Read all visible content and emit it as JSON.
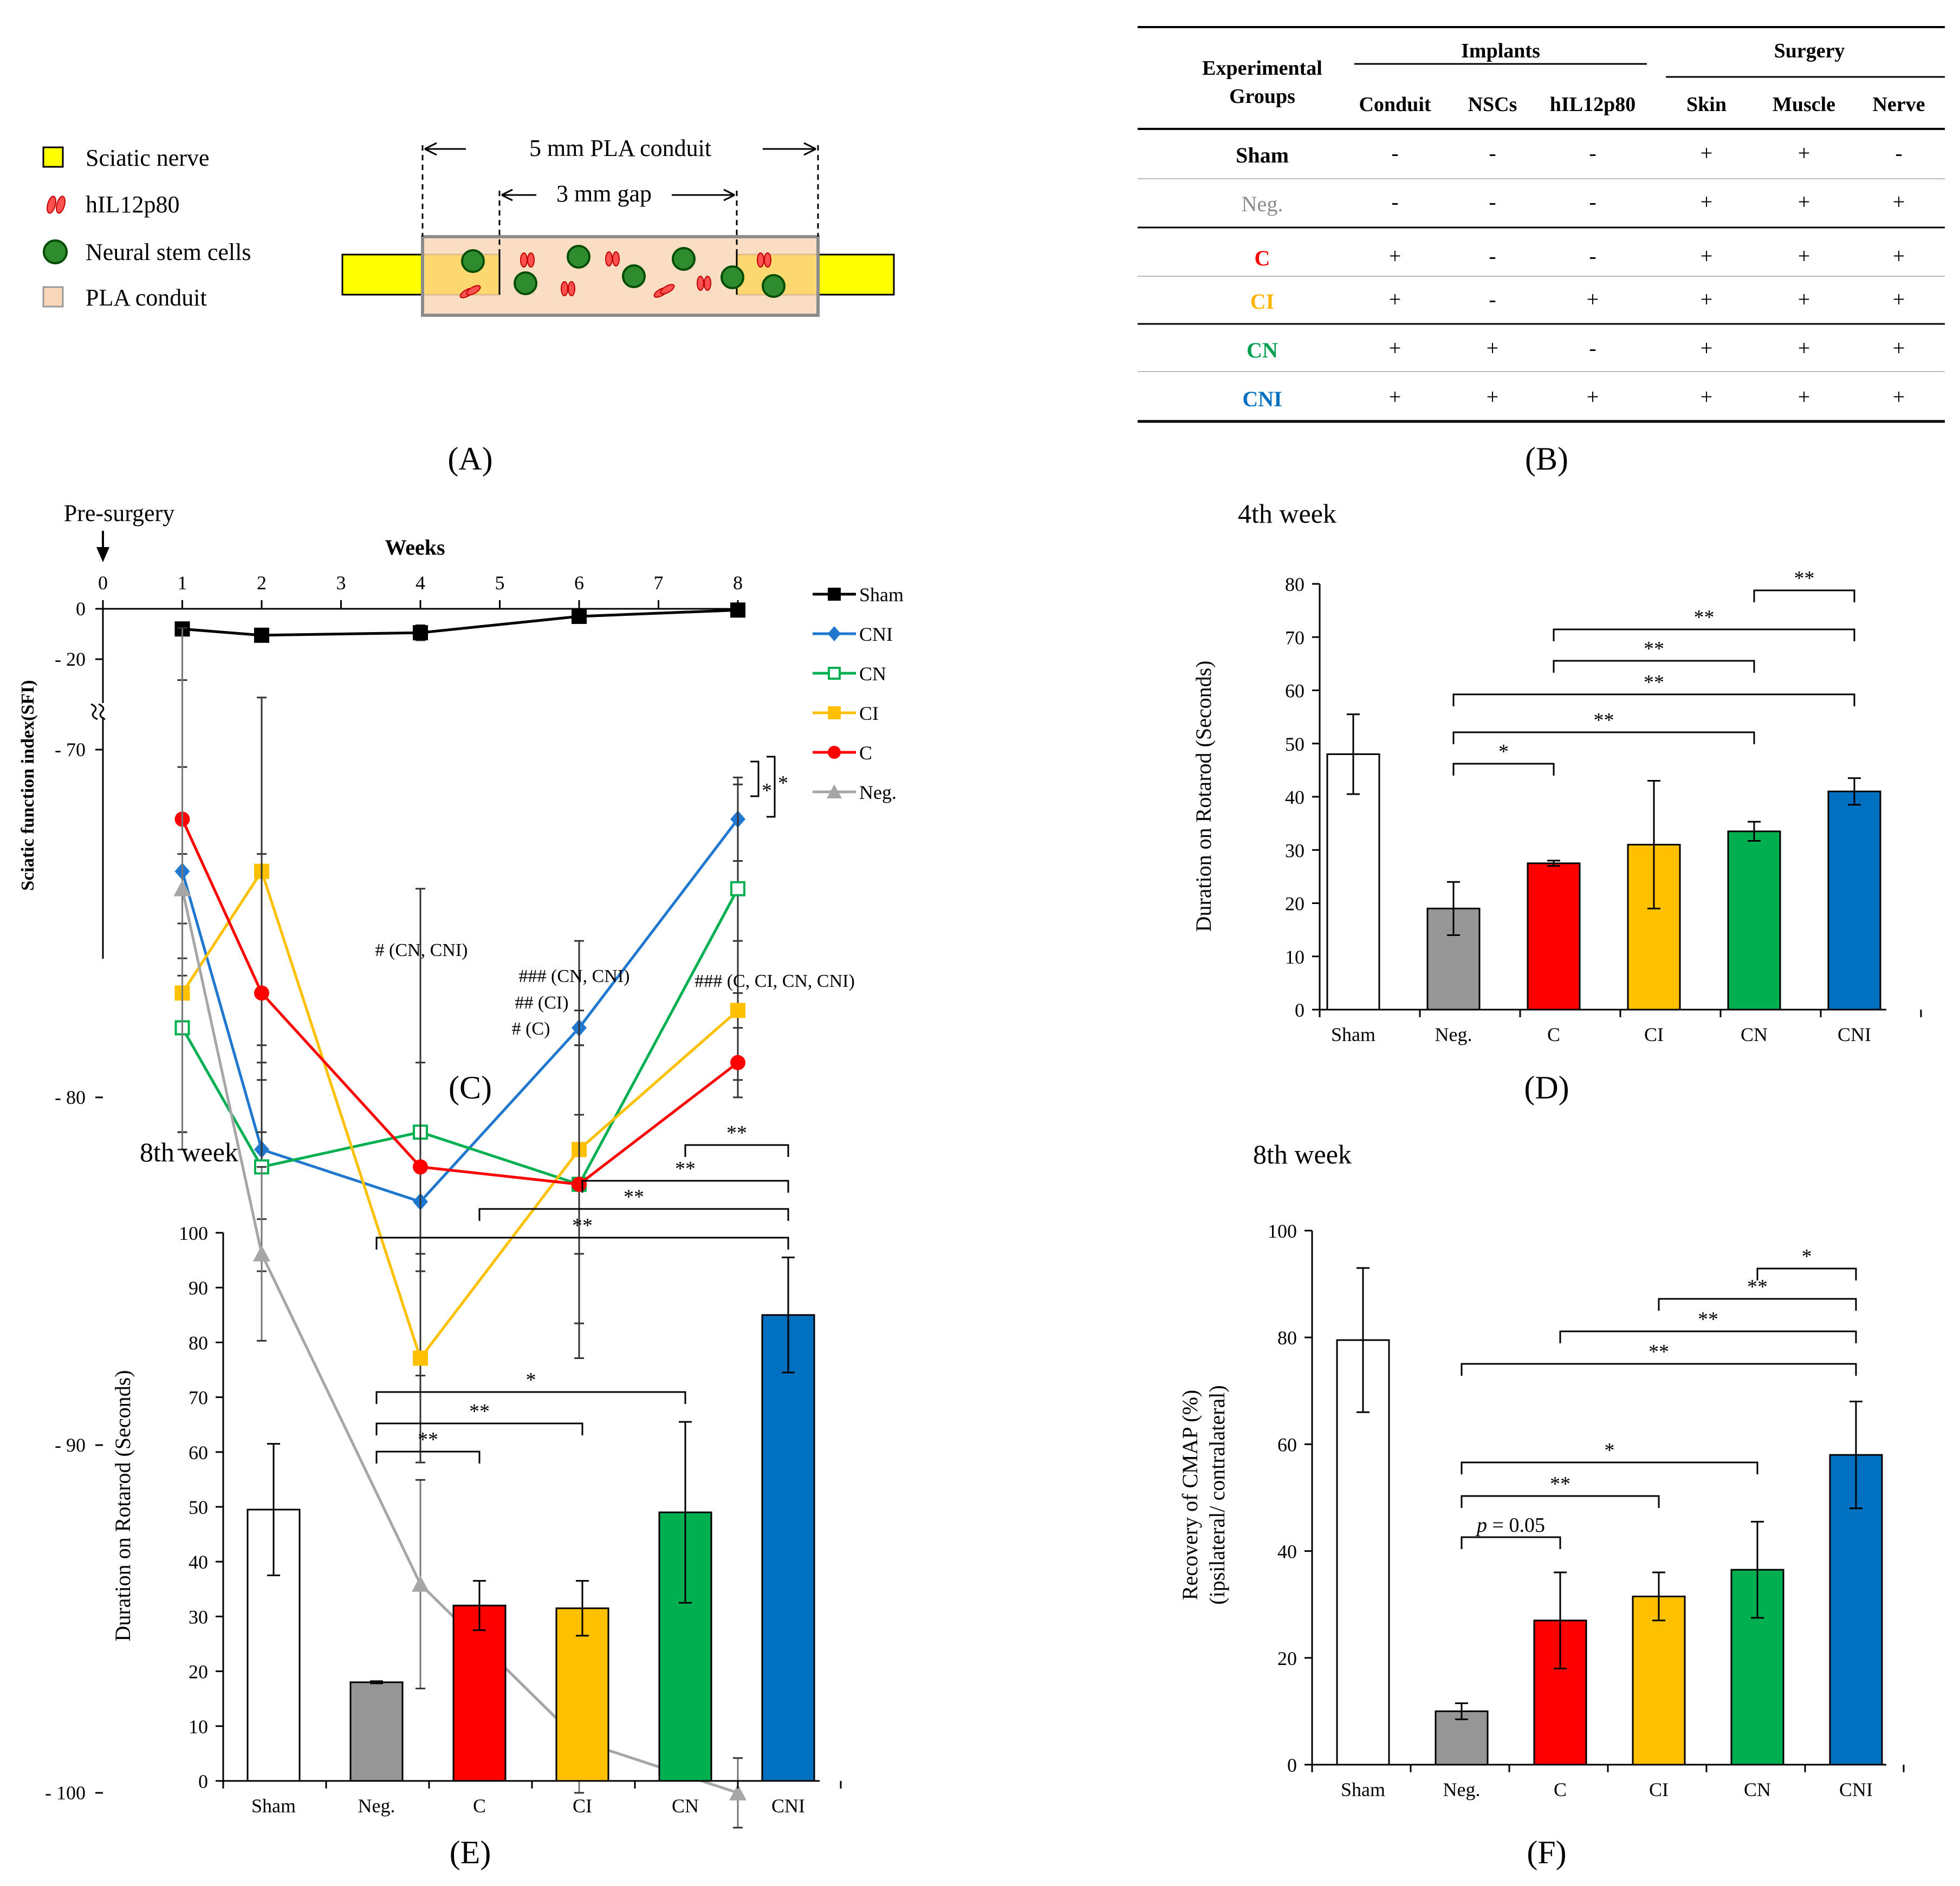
{
  "panelA": {
    "label": "(A)",
    "legend": [
      {
        "label": "Sciatic nerve",
        "color": "#ffff00",
        "shape": "square"
      },
      {
        "label": "hIL12p80",
        "color": "#ff5050",
        "shape": "beans"
      },
      {
        "label": "Neural stem cells",
        "color": "#2e8b2e",
        "shape": "circle"
      },
      {
        "label": "PLA conduit",
        "color": "#fad7b9",
        "shape": "square"
      }
    ],
    "conduit_label": "5 mm PLA conduit",
    "gap_label": "3 mm gap"
  },
  "panelB": {
    "label": "(B)",
    "group_header_1": "Experimental",
    "group_header_2": "Groups",
    "implants_header": "Implants",
    "surgery_header": "Surgery",
    "columns": [
      "Conduit",
      "NSCs",
      "hIL12p80",
      "Skin",
      "Muscle",
      "Nerve"
    ],
    "rows": [
      {
        "name": "Sham",
        "color": "#000000",
        "bold": true,
        "values": [
          "-",
          "-",
          "-",
          "+",
          "+",
          "-"
        ]
      },
      {
        "name": "Neg.",
        "color": "#8c8c8c",
        "bold": false,
        "values": [
          "-",
          "-",
          "-",
          "+",
          "+",
          "+"
        ]
      },
      {
        "name": "C",
        "color": "#ff0000",
        "bold": true,
        "values": [
          "+",
          "-",
          "-",
          "+",
          "+",
          "+"
        ]
      },
      {
        "name": "CI",
        "color": "#ffb400",
        "bold": true,
        "values": [
          "+",
          "-",
          "+",
          "+",
          "+",
          "+"
        ]
      },
      {
        "name": "CN",
        "color": "#00a050",
        "bold": true,
        "values": [
          "+",
          "+",
          "-",
          "+",
          "+",
          "+"
        ]
      },
      {
        "name": "CNI",
        "color": "#0070c0",
        "bold": true,
        "values": [
          "+",
          "+",
          "+",
          "+",
          "+",
          "+"
        ]
      }
    ]
  },
  "chart_data": [
    {
      "id": "C",
      "panel_label": "(C)",
      "type": "line",
      "title": "Weeks",
      "annotation_top": "Pre-surgery",
      "ylabel": "Sciatic function index(SFI)",
      "x_ticks": [
        0,
        1,
        2,
        3,
        4,
        5,
        6,
        7,
        8
      ],
      "y_tick_labels": [
        "0",
        "- 20",
        "- 70",
        "- 80",
        "- 90",
        "- 100"
      ],
      "axis_break": "between -20 and -70",
      "series": [
        {
          "name": "Sham",
          "color": "#000000",
          "marker": "square",
          "x": [
            1,
            2,
            4,
            6,
            8
          ],
          "y": [
            -8,
            -10.5,
            -9.5,
            -3,
            -0.5
          ],
          "err": [
            2.5,
            2.5,
            3,
            1.5,
            1
          ]
        },
        {
          "name": "CNI",
          "color": "#1f77d0",
          "marker": "diamond",
          "x": [
            1,
            2,
            4,
            6,
            8
          ],
          "y": [
            -73.5,
            -81.5,
            -83,
            -78,
            -72
          ],
          "err": [
            3,
            2,
            2,
            2.5,
            1.2
          ]
        },
        {
          "name": "CN",
          "color": "#00b050",
          "marker": "square-open",
          "x": [
            1,
            2,
            4,
            6,
            8
          ],
          "y": [
            -78,
            -82,
            -81,
            -82.5,
            -74
          ],
          "err": [
            3,
            3,
            7,
            4,
            3
          ]
        },
        {
          "name": "CI",
          "color": "#ffc000",
          "marker": "square",
          "x": [
            1,
            2,
            4,
            6,
            8
          ],
          "y": [
            -77,
            -73.5,
            -87.5,
            -81.5,
            -77.5
          ],
          "err": [
            4,
            5,
            3,
            3,
            2
          ]
        },
        {
          "name": "C",
          "color": "#ff0000",
          "marker": "circle",
          "x": [
            1,
            2,
            4,
            6,
            8
          ],
          "y": [
            -72,
            -77,
            -82,
            -82.5,
            -79
          ],
          "err": [
            4,
            4,
            3,
            5,
            1
          ]
        },
        {
          "name": "Neg.",
          "color": "#a6a6a6",
          "marker": "triangle",
          "x": [
            1,
            2,
            4,
            6,
            8
          ],
          "y": [
            -74,
            -84.5,
            -94,
            -98.5,
            -100
          ],
          "err": [
            7.5,
            2.5,
            3,
            1.5,
            1
          ]
        }
      ],
      "bracket_labels": [
        "*",
        "*"
      ],
      "annotations": [
        "# (CN, CNI)",
        "### (CN, CNI)",
        "## (CI)",
        "# (C)",
        "### (C, CI, CN, CNI)"
      ]
    },
    {
      "id": "D",
      "panel_label": "(D)",
      "type": "bar",
      "title": "4th week",
      "ylabel": "Duration on Rotarod (Seconds)",
      "ylim": [
        0,
        80
      ],
      "y_ticks": [
        0,
        10,
        20,
        30,
        40,
        50,
        60,
        70,
        80
      ],
      "categories": [
        "Sham",
        "Neg.",
        "C",
        "CI",
        "CN",
        "CNI"
      ],
      "values": [
        48,
        19,
        27.5,
        31,
        33.5,
        41
      ],
      "errors": [
        7.5,
        5,
        0.5,
        12,
        1.8,
        2.5
      ],
      "colors": [
        "#ffffff",
        "#969696",
        "#ff0000",
        "#ffc000",
        "#00b050",
        "#0070c0"
      ],
      "significance": [
        {
          "from": "Neg.",
          "to": "C",
          "label": "*"
        },
        {
          "from": "Neg.",
          "to": "CN",
          "label": "**"
        },
        {
          "from": "Neg.",
          "to": "CNI",
          "label": "**"
        },
        {
          "from": "C",
          "to": "CN",
          "label": "**"
        },
        {
          "from": "C",
          "to": "CNI",
          "label": "**"
        },
        {
          "from": "CN",
          "to": "CNI",
          "label": "**"
        }
      ]
    },
    {
      "id": "E",
      "panel_label": "(E)",
      "type": "bar",
      "title": "8th week",
      "ylabel": "Duration on Rotarod (Seconds)",
      "ylim": [
        0,
        100
      ],
      "y_ticks": [
        0,
        10,
        20,
        30,
        40,
        50,
        60,
        70,
        80,
        90,
        100
      ],
      "categories": [
        "Sham",
        "Neg.",
        "C",
        "CI",
        "CN",
        "CNI"
      ],
      "values": [
        49.5,
        18,
        32,
        31.5,
        49,
        85
      ],
      "errors": [
        12,
        0.2,
        4.5,
        5,
        16.5,
        10.5
      ],
      "colors": [
        "#ffffff",
        "#969696",
        "#ff0000",
        "#ffc000",
        "#00b050",
        "#0070c0"
      ],
      "significance": [
        {
          "from": "Neg.",
          "to": "C",
          "label": "**"
        },
        {
          "from": "Neg.",
          "to": "CI",
          "label": "**"
        },
        {
          "from": "Neg.",
          "to": "CN",
          "label": "*"
        },
        {
          "from": "Neg.",
          "to": "CNI",
          "label": "**"
        },
        {
          "from": "C",
          "to": "CNI",
          "label": "**"
        },
        {
          "from": "CI",
          "to": "CNI",
          "label": "**"
        },
        {
          "from": "CN",
          "to": "CNI",
          "label": "**"
        }
      ]
    },
    {
      "id": "F",
      "panel_label": "(F)",
      "type": "bar",
      "title": "8th week",
      "ylabel": "Recovery of CMAP (%)",
      "ylabel2": "(ipsilateral/ contralateral)",
      "ylim": [
        0,
        100
      ],
      "y_ticks": [
        0,
        20,
        40,
        60,
        80,
        100
      ],
      "categories": [
        "Sham",
        "Neg.",
        "C",
        "CI",
        "CN",
        "CNI"
      ],
      "values": [
        79.5,
        10,
        27,
        31.5,
        36.5,
        58
      ],
      "errors": [
        13.5,
        1.5,
        9,
        4.5,
        9,
        10
      ],
      "colors": [
        "#ffffff",
        "#969696",
        "#ff0000",
        "#ffc000",
        "#00b050",
        "#0070c0"
      ],
      "significance": [
        {
          "from": "Neg.",
          "to": "C",
          "label_prefix": "p",
          "label": " = 0.05"
        },
        {
          "from": "Neg.",
          "to": "CI",
          "label": "**"
        },
        {
          "from": "Neg.",
          "to": "CN",
          "label": "*"
        },
        {
          "from": "Neg.",
          "to": "CNI",
          "label": "**"
        },
        {
          "from": "C",
          "to": "CNI",
          "label": "**"
        },
        {
          "from": "CI",
          "to": "CNI",
          "label": "**"
        },
        {
          "from": "CN",
          "to": "CNI",
          "label": "*"
        }
      ]
    }
  ]
}
